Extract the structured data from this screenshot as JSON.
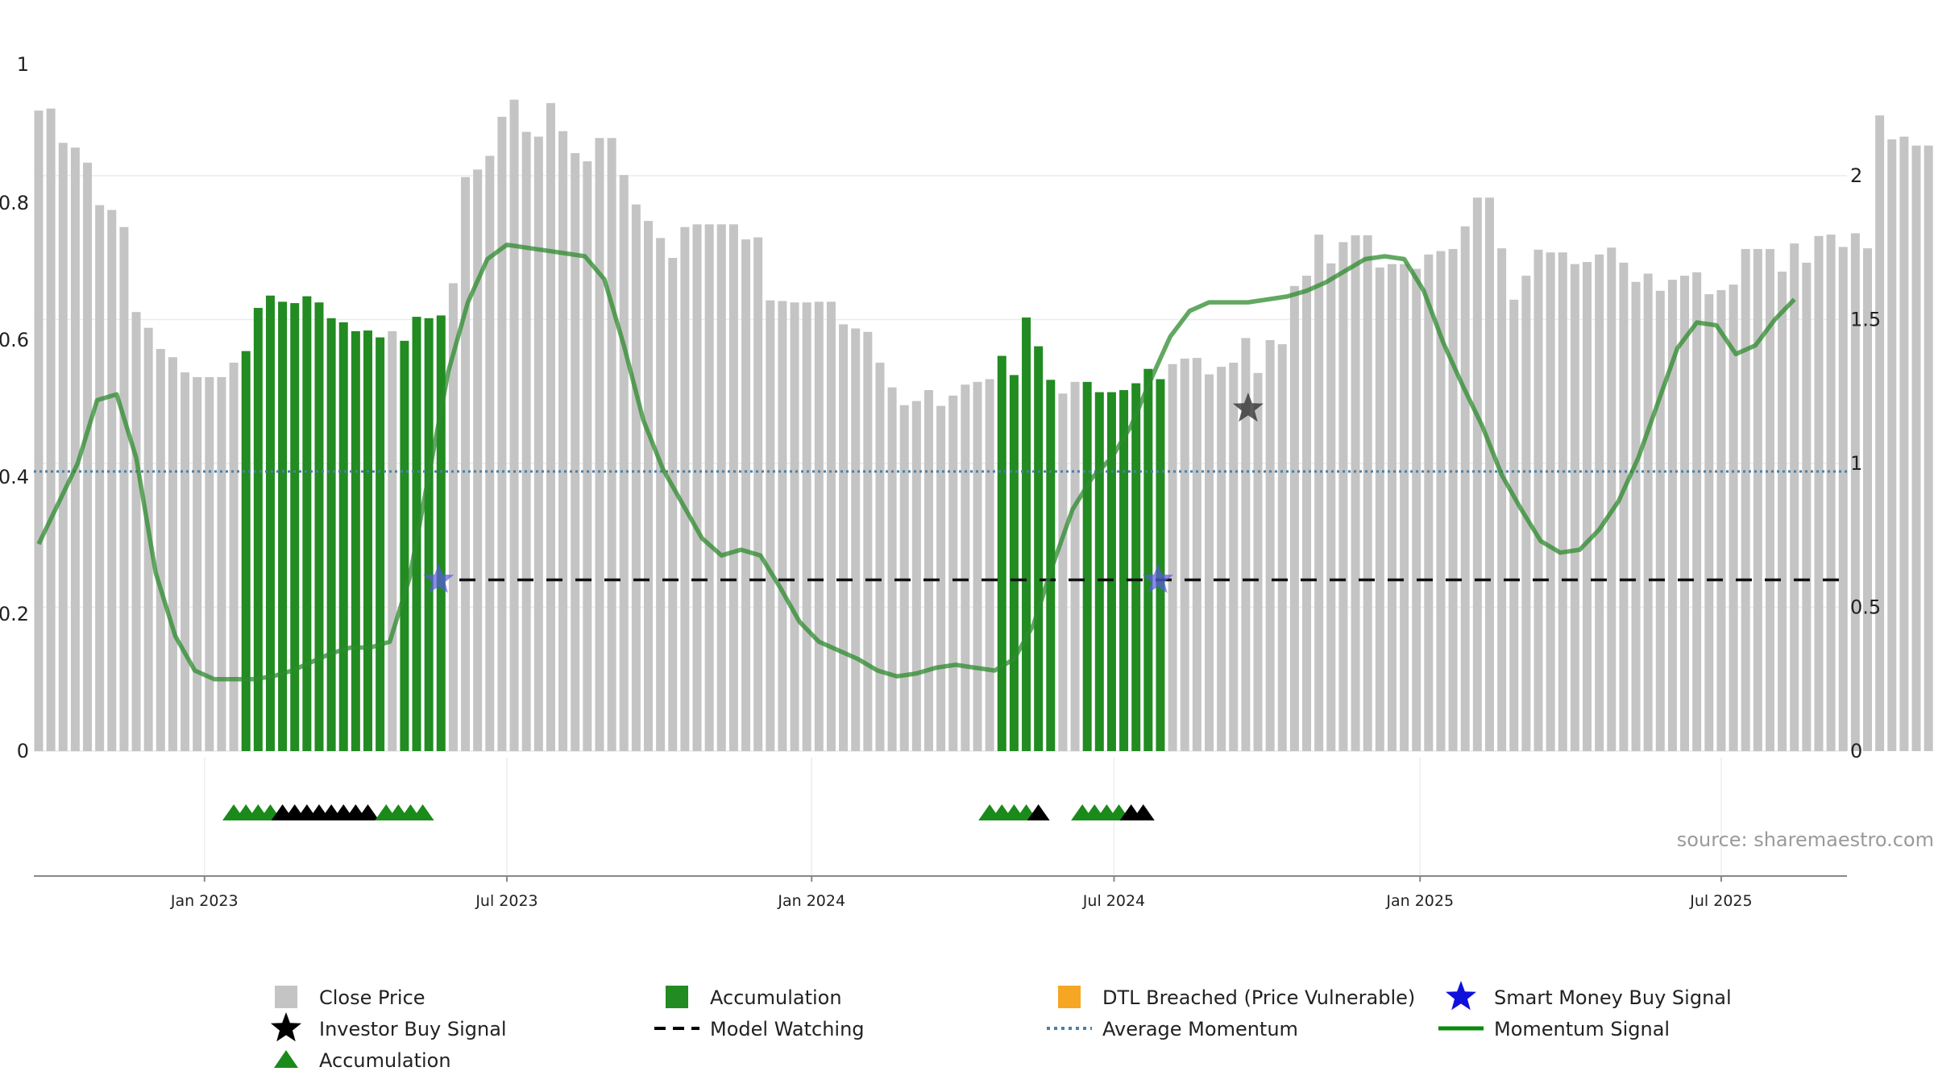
{
  "source_text": "source: sharemaestro.com",
  "colors": {
    "close": "#c4c4c4",
    "accumulation": "#228b22",
    "momentum": "#2e8b2e",
    "average": "#4a7fa8",
    "watching": "#111111",
    "investor_star": "#333333",
    "smart_star": "#5a5ae0",
    "dtl": "#f5a623",
    "acc_triangle": "#1a8a1a",
    "black_triangle": "#000000"
  },
  "chart_data": {
    "type": "bar",
    "left_axis": {
      "ylim": [
        0,
        1
      ],
      "ticks": [
        "0",
        "0.2",
        "0.4",
        "0.6",
        "0.8",
        "1"
      ],
      "tick_values": [
        0,
        0.2,
        0.4,
        0.6,
        0.8,
        1.0
      ]
    },
    "right_axis": {
      "ylim": [
        0,
        2.38
      ],
      "ticks": [
        "0",
        "0.5",
        "1",
        "1.5",
        "2"
      ],
      "tick_values": [
        0,
        0.5,
        1.0,
        1.5,
        2.0
      ]
    },
    "x_axis": {
      "labels": [
        "Jan 2023",
        "Jul 2023",
        "Jan 2024",
        "Jul 2024",
        "Jan 2025",
        "Jul 2025"
      ],
      "label_weeks": [
        13.6,
        38.4,
        63.4,
        88.2,
        113.3,
        138.0
      ]
    },
    "close_price": [
      0.935,
      0.938,
      0.888,
      0.881,
      0.859,
      0.797,
      0.79,
      0.765,
      0.641,
      0.618,
      0.587,
      0.575,
      0.553,
      0.546,
      0.546,
      0.546,
      0.567,
      0.584,
      0.647,
      0.665,
      0.656,
      0.654,
      0.664,
      0.655,
      0.632,
      0.626,
      0.613,
      0.614,
      0.604,
      0.613,
      0.599,
      0.634,
      0.632,
      0.636,
      0.683,
      0.838,
      0.849,
      0.869,
      0.926,
      0.951,
      0.904,
      0.897,
      0.946,
      0.905,
      0.873,
      0.861,
      0.895,
      0.895,
      0.841,
      0.798,
      0.774,
      0.749,
      0.72,
      0.765,
      0.769,
      0.769,
      0.769,
      0.769,
      0.747,
      0.75,
      0.658,
      0.657,
      0.655,
      0.655,
      0.656,
      0.656,
      0.623,
      0.617,
      0.612,
      0.567,
      0.531,
      0.505,
      0.511,
      0.527,
      0.504,
      0.519,
      0.535,
      0.539,
      0.543,
      0.577,
      0.549,
      0.633,
      0.591,
      0.542,
      0.522,
      0.539,
      0.539,
      0.524,
      0.524,
      0.527,
      0.537,
      0.558,
      0.543,
      0.565,
      0.573,
      0.574,
      0.55,
      0.561,
      0.567,
      0.603,
      0.552,
      0.6,
      0.594,
      0.679,
      0.694,
      0.754,
      0.712,
      0.743,
      0.753,
      0.753,
      0.706,
      0.711,
      0.711,
      0.704,
      0.725,
      0.73,
      0.733,
      0.766,
      0.808,
      0.808,
      0.734,
      0.659,
      0.694,
      0.732,
      0.728,
      0.728,
      0.711,
      0.714,
      0.725,
      0.735,
      0.713,
      0.685,
      0.697,
      0.672,
      0.688,
      0.694,
      0.699,
      0.667,
      0.673,
      0.681,
      0.733,
      0.733,
      0.733,
      0.7,
      0.741,
      0.713,
      0.752,
      0.754,
      0.736,
      0.756,
      0.734,
      0.928,
      0.893,
      0.897,
      0.884,
      0.884
    ],
    "accumulation_weeks": [
      17,
      18,
      19,
      20,
      21,
      22,
      23,
      24,
      25,
      26,
      27,
      28,
      30,
      31,
      32,
      33,
      79,
      80,
      81,
      82,
      83,
      86,
      87,
      88,
      89,
      90,
      91,
      92
    ],
    "momentum_signal": [
      0.72,
      0.86,
      1.0,
      1.22,
      1.24,
      1.02,
      0.62,
      0.4,
      0.28,
      0.25,
      0.25,
      0.25,
      0.26,
      0.28,
      0.31,
      0.34,
      0.36,
      0.36,
      0.38,
      0.6,
      0.96,
      1.32,
      1.56,
      1.71,
      1.76,
      1.75,
      1.74,
      1.73,
      1.72,
      1.64,
      1.41,
      1.15,
      0.98,
      0.86,
      0.74,
      0.68,
      0.7,
      0.68,
      0.57,
      0.45,
      0.38,
      0.35,
      0.32,
      0.28,
      0.26,
      0.27,
      0.29,
      0.3,
      0.29,
      0.28,
      0.32,
      0.44,
      0.65,
      0.84,
      0.95,
      1.02,
      1.13,
      1.29,
      1.44,
      1.53,
      1.56,
      1.56,
      1.56,
      1.57,
      1.58,
      1.6,
      1.63,
      1.67,
      1.71,
      1.72,
      1.71,
      1.6,
      1.42,
      1.27,
      1.13,
      0.96,
      0.84,
      0.73,
      0.69,
      0.7,
      0.77,
      0.87,
      1.02,
      1.21,
      1.4,
      1.49,
      1.48,
      1.38,
      1.41,
      1.5,
      1.57
    ],
    "momentum_x_step": 1.6,
    "average_momentum": 0.972,
    "model_watching": {
      "level": 0.25,
      "from_week": 34.5,
      "to_week": 148.5
    },
    "smart_money_buy_signals": [
      {
        "week": 32.8,
        "value": 0.25
      },
      {
        "week": 91.8,
        "value": 0.25
      }
    ],
    "investor_buy_signals": [
      {
        "week": 99.2,
        "value": 0.5
      }
    ],
    "triangle_markers": [
      {
        "week": 16.0,
        "kind": "accumulation"
      },
      {
        "week": 17.0,
        "kind": "accumulation"
      },
      {
        "week": 18.0,
        "kind": "accumulation"
      },
      {
        "week": 19.0,
        "kind": "accumulation"
      },
      {
        "week": 20.0,
        "kind": "investor"
      },
      {
        "week": 21.0,
        "kind": "investor"
      },
      {
        "week": 22.0,
        "kind": "investor"
      },
      {
        "week": 23.0,
        "kind": "investor"
      },
      {
        "week": 24.0,
        "kind": "investor"
      },
      {
        "week": 25.0,
        "kind": "investor"
      },
      {
        "week": 26.0,
        "kind": "investor"
      },
      {
        "week": 27.0,
        "kind": "investor"
      },
      {
        "week": 28.5,
        "kind": "accumulation"
      },
      {
        "week": 29.5,
        "kind": "accumulation"
      },
      {
        "week": 30.5,
        "kind": "accumulation"
      },
      {
        "week": 31.5,
        "kind": "accumulation"
      },
      {
        "week": 78.0,
        "kind": "accumulation"
      },
      {
        "week": 79.0,
        "kind": "accumulation"
      },
      {
        "week": 80.0,
        "kind": "accumulation"
      },
      {
        "week": 81.0,
        "kind": "accumulation"
      },
      {
        "week": 82.0,
        "kind": "investor"
      },
      {
        "week": 85.6,
        "kind": "accumulation"
      },
      {
        "week": 86.6,
        "kind": "accumulation"
      },
      {
        "week": 87.6,
        "kind": "accumulation"
      },
      {
        "week": 88.6,
        "kind": "accumulation"
      },
      {
        "week": 89.6,
        "kind": "investor"
      },
      {
        "week": 90.6,
        "kind": "investor"
      }
    ],
    "legend": [
      {
        "label": "Close Price",
        "symbol": "gray-square"
      },
      {
        "label": "Accumulation",
        "symbol": "green-square"
      },
      {
        "label": "DTL Breached (Price Vulnerable)",
        "symbol": "orange-square"
      },
      {
        "label": "Smart Money Buy Signal",
        "symbol": "blue-star"
      },
      {
        "label": "Investor Buy Signal",
        "symbol": "black-star"
      },
      {
        "label": "Model Watching",
        "symbol": "black-dash"
      },
      {
        "label": "Average Momentum",
        "symbol": "blue-dotted"
      },
      {
        "label": "Momentum Signal",
        "symbol": "green-line"
      },
      {
        "label": "Accumulation",
        "symbol": "green-triangle"
      }
    ]
  }
}
